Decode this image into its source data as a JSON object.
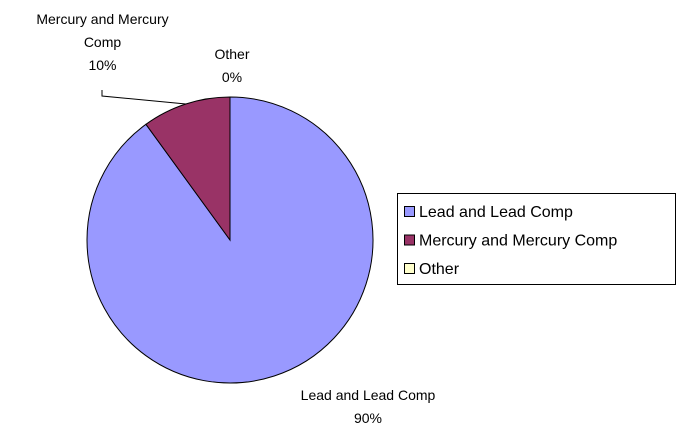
{
  "chart_data": {
    "type": "pie",
    "categories": [
      "Lead and Lead Comp",
      "Mercury and Mercury Comp",
      "Other"
    ],
    "values": [
      90,
      10,
      0
    ],
    "value_labels": [
      "90%",
      "10%",
      "0%"
    ],
    "colors": [
      "#9999ff",
      "#993366",
      "#ffffcc"
    ],
    "legend": "right"
  }
}
